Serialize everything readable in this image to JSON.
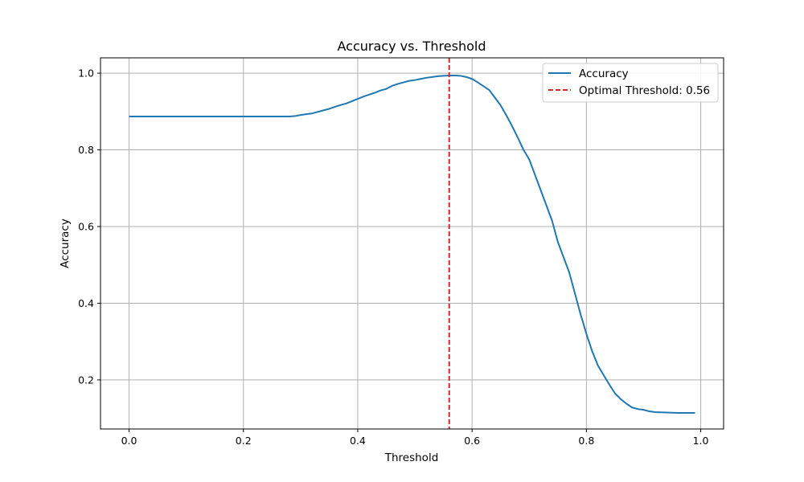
{
  "chart_data": {
    "type": "line",
    "title": "Accuracy vs. Threshold",
    "xlabel": "Threshold",
    "ylabel": "Accuracy",
    "xlim": [
      -0.05,
      1.04
    ],
    "ylim": [
      0.072,
      1.04
    ],
    "xticks": [
      0.0,
      0.2,
      0.4,
      0.6,
      0.8,
      1.0
    ],
    "xtick_labels": [
      "0.0",
      "0.2",
      "0.4",
      "0.6",
      "0.8",
      "1.0"
    ],
    "yticks": [
      0.2,
      0.4,
      0.6,
      0.8,
      1.0
    ],
    "ytick_labels": [
      "0.2",
      "0.4",
      "0.6",
      "0.8",
      "1.0"
    ],
    "grid": true,
    "legend_position": "top-right",
    "series": [
      {
        "name": "Accuracy",
        "color": "#1f77b4",
        "style": "solid",
        "x": [
          0.0,
          0.05,
          0.1,
          0.15,
          0.2,
          0.25,
          0.28,
          0.29,
          0.3,
          0.32,
          0.34,
          0.35,
          0.36,
          0.37,
          0.38,
          0.39,
          0.4,
          0.41,
          0.42,
          0.43,
          0.44,
          0.45,
          0.46,
          0.47,
          0.48,
          0.49,
          0.5,
          0.51,
          0.52,
          0.53,
          0.54,
          0.55,
          0.56,
          0.57,
          0.58,
          0.59,
          0.6,
          0.61,
          0.62,
          0.63,
          0.64,
          0.65,
          0.66,
          0.67,
          0.68,
          0.69,
          0.7,
          0.71,
          0.72,
          0.73,
          0.74,
          0.75,
          0.76,
          0.77,
          0.78,
          0.79,
          0.8,
          0.81,
          0.82,
          0.83,
          0.84,
          0.85,
          0.86,
          0.87,
          0.88,
          0.89,
          0.9,
          0.91,
          0.92,
          0.94,
          0.96,
          0.98,
          0.99
        ],
        "y": [
          0.887,
          0.887,
          0.887,
          0.887,
          0.887,
          0.887,
          0.887,
          0.888,
          0.891,
          0.895,
          0.903,
          0.907,
          0.912,
          0.917,
          0.921,
          0.927,
          0.933,
          0.939,
          0.944,
          0.949,
          0.955,
          0.959,
          0.967,
          0.972,
          0.976,
          0.98,
          0.982,
          0.985,
          0.988,
          0.99,
          0.992,
          0.993,
          0.994,
          0.994,
          0.993,
          0.99,
          0.985,
          0.976,
          0.966,
          0.956,
          0.936,
          0.916,
          0.89,
          0.862,
          0.832,
          0.8,
          0.775,
          0.735,
          0.695,
          0.655,
          0.615,
          0.56,
          0.52,
          0.48,
          0.425,
          0.37,
          0.32,
          0.275,
          0.238,
          0.213,
          0.188,
          0.165,
          0.15,
          0.138,
          0.128,
          0.124,
          0.122,
          0.118,
          0.116,
          0.115,
          0.114,
          0.114,
          0.114
        ]
      },
      {
        "name": "Optimal Threshold: 0.56",
        "color": "#d62728",
        "style": "dashed",
        "vline_x": 0.56
      }
    ]
  }
}
